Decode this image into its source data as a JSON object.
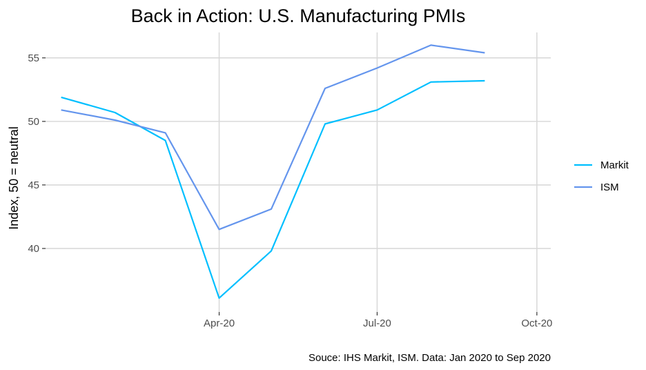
{
  "chart_data": {
    "type": "line",
    "title": "Back in Action: U.S. Manufacturing PMIs",
    "xlabel": "",
    "ylabel": "Index, 50 = neutral",
    "caption": "Souce: IHS Markit, ISM. Data: Jan 2020 to Sep 2020",
    "x": [
      "2020-01-01",
      "2020-02-01",
      "2020-03-01",
      "2020-04-01",
      "2020-05-01",
      "2020-06-01",
      "2020-07-01",
      "2020-08-01",
      "2020-09-01"
    ],
    "x_ticks": [
      {
        "date": "2020-04-01",
        "label": "Apr-20"
      },
      {
        "date": "2020-07-01",
        "label": "Jul-20"
      },
      {
        "date": "2020-10-01",
        "label": "Oct-20"
      }
    ],
    "xlim": [
      "2019-12-23",
      "2020-10-09"
    ],
    "ylim": [
      35.0,
      57.0
    ],
    "y_ticks": [
      40,
      45,
      50,
      55
    ],
    "grid": true,
    "legend_position": "right",
    "series": [
      {
        "name": "Markit",
        "color": "#00bfff",
        "values": [
          51.9,
          50.7,
          48.5,
          36.1,
          39.8,
          49.8,
          50.9,
          53.1,
          53.2
        ]
      },
      {
        "name": "ISM",
        "color": "#6495ed",
        "values": [
          50.9,
          50.1,
          49.1,
          41.5,
          43.1,
          52.6,
          54.2,
          56.0,
          55.4
        ]
      }
    ]
  }
}
